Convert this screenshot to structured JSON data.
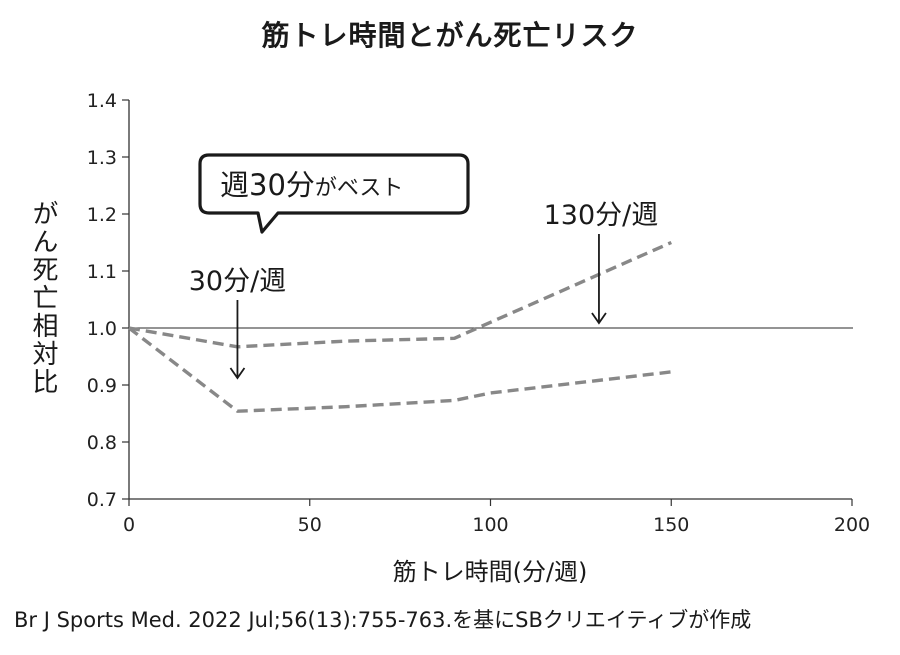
{
  "title": "筋トレ時間とがん死亡リスク",
  "source": "Br J Sports Med. 2022 Jul;56(13):755-763.を基にSBクリエイティブが作成",
  "chart_data": {
    "type": "line",
    "title": "筋トレ時間とがん死亡リスク",
    "xlabel": "筋トレ時間(分/週)",
    "ylabel": "がん死亡相対比",
    "xlim": [
      0,
      200
    ],
    "ylim": [
      0.7,
      1.4
    ],
    "xticks": [
      "0",
      "50",
      "100",
      "150",
      "200"
    ],
    "yticks": [
      "0.7",
      "0.8",
      "0.9",
      "1.0",
      "1.1",
      "1.2",
      "1.3",
      "1.4"
    ],
    "reference_line": 1.0,
    "grid": false,
    "series": [
      {
        "style": "dashed",
        "x": [
          0,
          30,
          60,
          90,
          100,
          150
        ],
        "y": [
          1.0,
          0.967,
          0.977,
          0.982,
          1.01,
          1.15
        ]
      },
      {
        "style": "dashed",
        "x": [
          0,
          30,
          60,
          90,
          100,
          150
        ],
        "y": [
          1.0,
          0.854,
          0.862,
          0.873,
          0.886,
          0.923
        ]
      }
    ],
    "annotations": [
      {
        "text": "30分/週",
        "x": 30
      },
      {
        "text": "130分/週",
        "x": 130
      }
    ],
    "callout": {
      "main": "週30分",
      "small": "がベスト"
    },
    "colors": {
      "line": "#888888",
      "axis": "#333333"
    }
  }
}
